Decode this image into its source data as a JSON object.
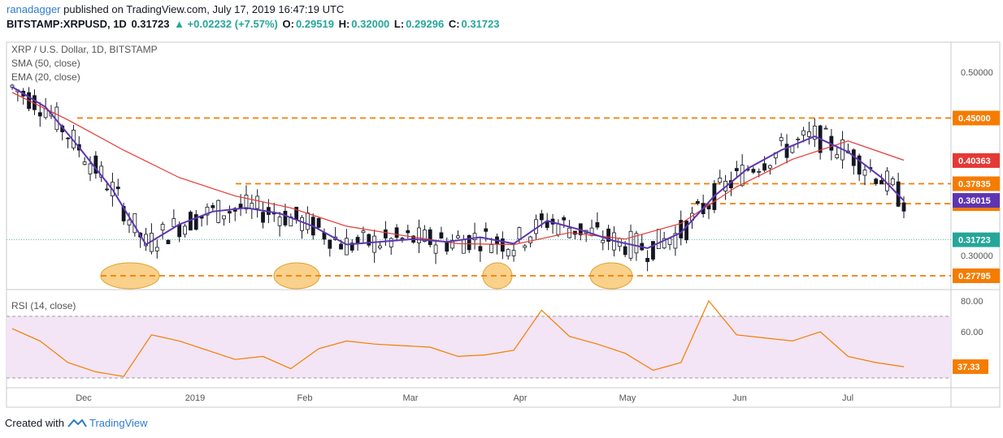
{
  "header": {
    "author": "ranadagger",
    "published_text": "published on TradingView.com, July 17, 2019 16:47:19 UTC",
    "symbol": "BITSTAMP:XRPUSD, 1D",
    "last": "0.31723",
    "change": "▲ +0.02232 (+7.57%)",
    "open_label": "O:",
    "open": "0.29519",
    "high_label": "H:",
    "high": "0.32000",
    "low_label": "L:",
    "low": "0.29296",
    "close_label": "C:",
    "close": "0.31723"
  },
  "legend": {
    "title": "XRP / U.S. Dollar, 1D, BITSTAMP",
    "sma": "SMA (50, close)",
    "ema": "EMA (20, close)",
    "rsi": "RSI (14, close)"
  },
  "footer": {
    "created_with": "Created with",
    "brand": "TradingView"
  },
  "colors": {
    "up": "#26a69a",
    "down": "#ef5350",
    "candle_body": "#131722",
    "sma": "#e53935",
    "ema": "#5e35b1",
    "level": "#f57c00",
    "rsi_line": "#f57c00",
    "rsi_band": "#f3e5f5",
    "highlight": "#f7c66e"
  },
  "chart_data": [
    {
      "type": "candlestick",
      "title": "XRP / U.S. Dollar, 1D, BITSTAMP",
      "x_ticks": [
        "Dec",
        "2019",
        "Feb",
        "Mar",
        "Apr",
        "May",
        "Jun",
        "Jul"
      ],
      "y_ticks": [
        "0.50000",
        "0.30000"
      ],
      "ylim": [
        0.265,
        0.525
      ],
      "horizontal_levels": [
        "0.45000",
        "0.37835",
        "0.35660",
        "0.27795"
      ],
      "price_labels": [
        {
          "value": "0.40363",
          "role": "sma"
        },
        {
          "value": "0.36015",
          "role": "ema"
        },
        {
          "value": "0.31723",
          "role": "last"
        }
      ],
      "series": [
        {
          "name": "SMA (50, close)",
          "x": [
            0,
            20,
            40,
            60,
            80,
            100,
            120,
            140,
            160,
            180,
            200,
            220,
            240,
            260,
            280,
            300,
            320
          ],
          "values": [
            0.478,
            0.448,
            0.415,
            0.385,
            0.365,
            0.352,
            0.332,
            0.322,
            0.313,
            0.312,
            0.325,
            0.318,
            0.335,
            0.375,
            0.405,
            0.425,
            0.404
          ]
        },
        {
          "name": "EMA (20, close)",
          "x": [
            0,
            12,
            24,
            36,
            48,
            60,
            72,
            84,
            96,
            108,
            120,
            132,
            144,
            156,
            168,
            180,
            192,
            204,
            216,
            228,
            240,
            252,
            264,
            276,
            288,
            300,
            312,
            320
          ],
          "values": [
            0.484,
            0.462,
            0.418,
            0.372,
            0.312,
            0.334,
            0.348,
            0.352,
            0.346,
            0.332,
            0.312,
            0.315,
            0.318,
            0.315,
            0.32,
            0.313,
            0.338,
            0.328,
            0.316,
            0.308,
            0.325,
            0.365,
            0.395,
            0.415,
            0.43,
            0.413,
            0.385,
            0.36
          ]
        }
      ]
    },
    {
      "type": "line",
      "title": "RSI (14, close)",
      "y_ticks": [
        "80.00",
        "60.00"
      ],
      "ylim": [
        26,
        84
      ],
      "bands": [
        30,
        70
      ],
      "last_value": "37.33",
      "x": [
        0,
        10,
        20,
        30,
        40,
        50,
        60,
        70,
        80,
        90,
        100,
        110,
        120,
        130,
        140,
        150,
        160,
        170,
        180,
        190,
        200,
        210,
        220,
        230,
        240,
        250,
        260,
        270,
        280,
        290,
        300,
        310,
        320
      ],
      "values": [
        62,
        54,
        40,
        34,
        31,
        58,
        54,
        48,
        42,
        44,
        36,
        49,
        54,
        52,
        51,
        50,
        44,
        45,
        48,
        74,
        57,
        52,
        46,
        35,
        40,
        80,
        58,
        56,
        54,
        60,
        44,
        40,
        37.33
      ]
    }
  ]
}
